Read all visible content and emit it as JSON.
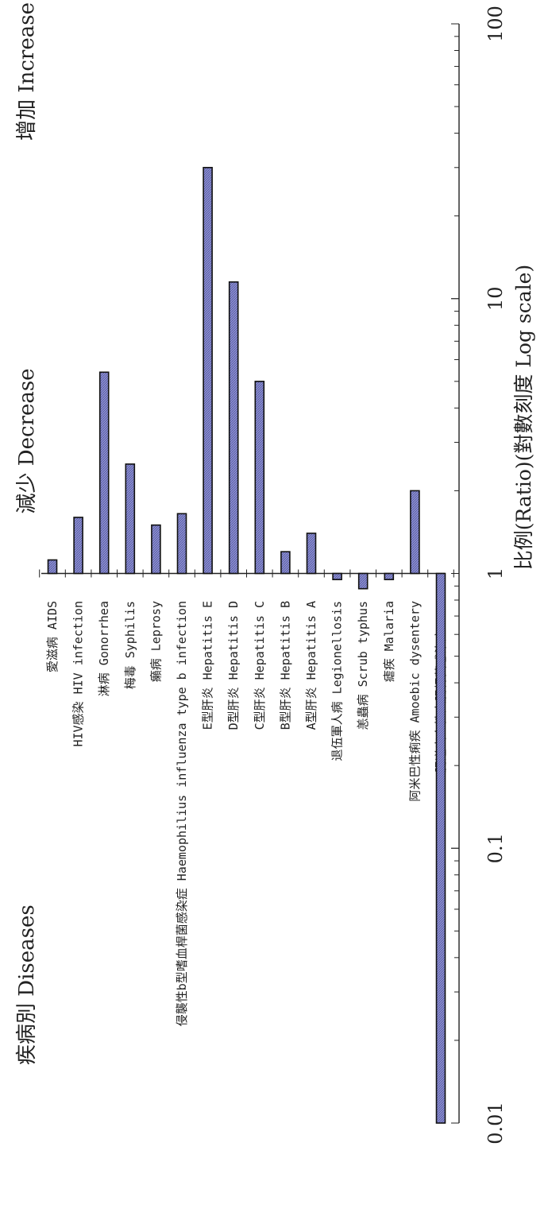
{
  "chart_data": {
    "type": "bar",
    "orientation": "horizontal",
    "scale": "log",
    "title_left": "疾病別 Diseases",
    "label_decrease": "減少 Decrease",
    "label_increase": "增加 Increase",
    "value_axis_label": "比例(Ratio)(對數刻度 Log scale)",
    "xlim": [
      0.01,
      100
    ],
    "ticks": [
      "0.01",
      "0.1",
      "1",
      "10",
      "100"
    ],
    "tick_values": [
      0.01,
      0.1,
      1,
      10,
      100
    ],
    "baseline": 1,
    "grid": false,
    "bar_color": "#8c8fd0",
    "bar_edge_color": "#111111",
    "categories": [
      "愛滋病 AIDS",
      "HIV感染 HIV infection",
      "淋病 Gonorrhea",
      "梅毒 Syphilis",
      "癩病 Leprosy",
      "侵襲性b型嗜血桿菌感染症 Haemophilius influenza type b infection",
      "E型肝炎 Hepatitis E",
      "D型肝炎 Hepatitis D",
      "C型肝炎 Hepatitis C",
      "B型肝炎 Hepatitis B",
      "A型肝炎 Hepatitis A",
      "退伍軍人病 Legionellosis",
      "恙蟲病 Scrub typhus",
      "瘧疾 Malaria",
      "阿米巴性痢疾 Amoebic dysentery",
      "腸道出血性大腸桿菌感染症EHEC"
    ],
    "values": [
      1.12,
      1.6,
      5.4,
      2.5,
      1.5,
      1.65,
      30,
      11.5,
      5.0,
      1.2,
      1.4,
      0.95,
      0.88,
      0.95,
      2.0,
      0.01
    ]
  }
}
